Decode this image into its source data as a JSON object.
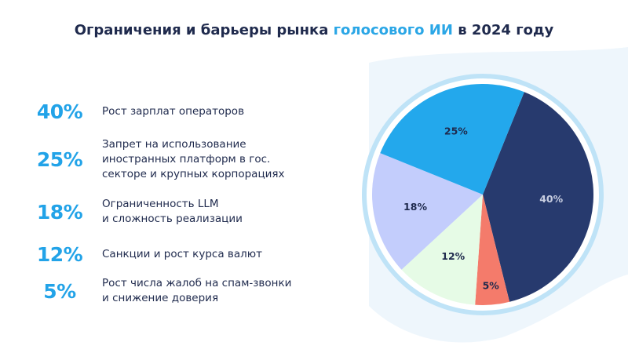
{
  "title": {
    "prefix": "Ограничения и барьеры рынка ",
    "accent": "голосового ИИ",
    "suffix": " в 2024 году"
  },
  "items": [
    {
      "percent": "40%",
      "text": [
        "Рост зарплат операторов"
      ]
    },
    {
      "percent": "25%",
      "text": [
        "Запрет на использование",
        "иностранных платформ в гос.",
        "секторе и крупных корпорациях"
      ]
    },
    {
      "percent": "18%",
      "text": [
        "Ограниченность LLM",
        "и сложность реализации"
      ]
    },
    {
      "percent": "12%",
      "text": [
        "Санкции и рост курса валют"
      ]
    },
    {
      "percent": "5%",
      "text": [
        "Рост числа жалоб на спам-звонки",
        "и снижение доверия"
      ]
    }
  ],
  "colors": {
    "accent": "#2aa6e6",
    "title": "#1f2a4d",
    "ring": "#bfe3f7",
    "background_wave": "#eef6fc"
  },
  "chart_data": {
    "type": "pie",
    "slices": [
      {
        "label": "40%",
        "value": 40,
        "color": "#273a6e",
        "label_color": "#c7cde0"
      },
      {
        "label": "5%",
        "value": 5,
        "color": "#f47b6b",
        "label_color": "#1f2a4d"
      },
      {
        "label": "12%",
        "value": 12,
        "color": "#e6fbe6",
        "label_color": "#1f2a4d"
      },
      {
        "label": "18%",
        "value": 18,
        "color": "#c3cdfc",
        "label_color": "#1f2a4d"
      },
      {
        "label": "25%",
        "value": 25,
        "color": "#23a8ec",
        "label_color": "#1f2a4d"
      }
    ]
  }
}
